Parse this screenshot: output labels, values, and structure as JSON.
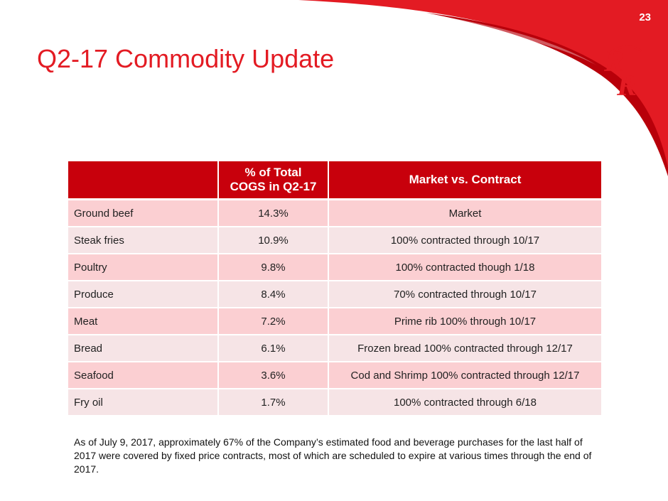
{
  "header": {
    "page_number": "23",
    "accent_color": "#e31b23"
  },
  "logo": {
    "icon": "rr-logo-icon",
    "color": "#e31b23"
  },
  "title": "Q2-17 Commodity Update",
  "table": {
    "header_color": "#c8000c",
    "odd_row_color": "#fbcfd2",
    "even_row_color": "#f6e4e6",
    "columns": [
      "",
      "% of Total\nCOGS in Q2-17",
      "Market vs. Contract"
    ],
    "rows": [
      {
        "name": "Ground beef",
        "pct": "14.3%",
        "status": "Market"
      },
      {
        "name": "Steak fries",
        "pct": "10.9%",
        "status": "100% contracted through 10/17"
      },
      {
        "name": "Poultry",
        "pct": "9.8%",
        "status": "100% contracted though 1/18"
      },
      {
        "name": "Produce",
        "pct": "8.4%",
        "status": "70% contracted through 10/17"
      },
      {
        "name": "Meat",
        "pct": "7.2%",
        "status": "Prime rib 100% through 10/17"
      },
      {
        "name": "Bread",
        "pct": "6.1%",
        "status": "Frozen bread 100% contracted through 12/17"
      },
      {
        "name": "Seafood",
        "pct": "3.6%",
        "status": "Cod and Shrimp 100% contracted through 12/17"
      },
      {
        "name": "Fry oil",
        "pct": "1.7%",
        "status": "100% contracted through 6/18"
      }
    ]
  },
  "footnote": "As of July 9, 2017, approximately 67% of the Company’s estimated food and beverage purchases for the last half of 2017 were covered by fixed price contracts, most of which are scheduled to expire at various times through the end of 2017."
}
